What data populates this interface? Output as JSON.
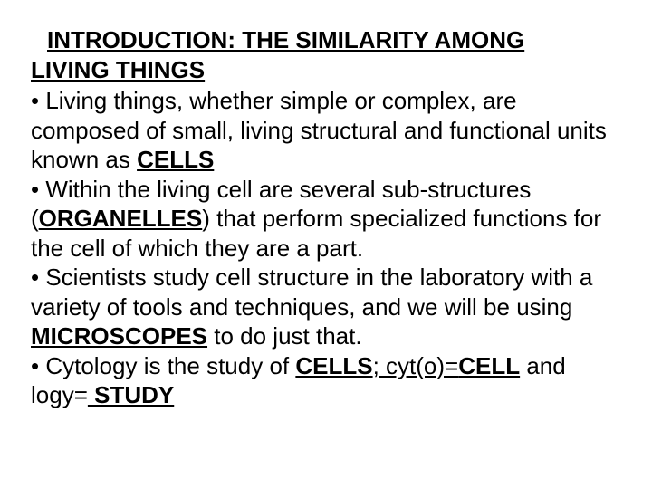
{
  "colors": {
    "background": "#ffffff",
    "text": "#000000"
  },
  "typography": {
    "font_family": "Arial",
    "heading_fontsize": 26,
    "body_fontsize": 26,
    "line_height": 1.25,
    "heading_weight": "bold"
  },
  "heading": {
    "line1": "INTRODUCTION: THE SIMILARITY AMONG",
    "line2": "LIVING THINGS"
  },
  "bullets": {
    "b1": {
      "pre": "• Living things, whether simple or complex, are composed of small, living structural and functional units known as ",
      "strong": "CELLS"
    },
    "b2": {
      "pre": "• Within the living cell are several sub-structures (",
      "strong": "ORGANELLES",
      "post": ") that perform specialized functions for the cell of which they are a part."
    },
    "b3": {
      "pre": "• Scientists study cell structure in the laboratory with a variety of tools and techniques, and we will be using ",
      "strong": "MICROSCOPES",
      "post": " to do just that."
    },
    "b4": {
      "pre": "• Cytology is the study of ",
      "strong1": "CELLS",
      "mid1": "; cyt(o)=",
      "strong2": "CELL",
      "mid2": " and logy=",
      "strong3": " STUDY"
    }
  }
}
